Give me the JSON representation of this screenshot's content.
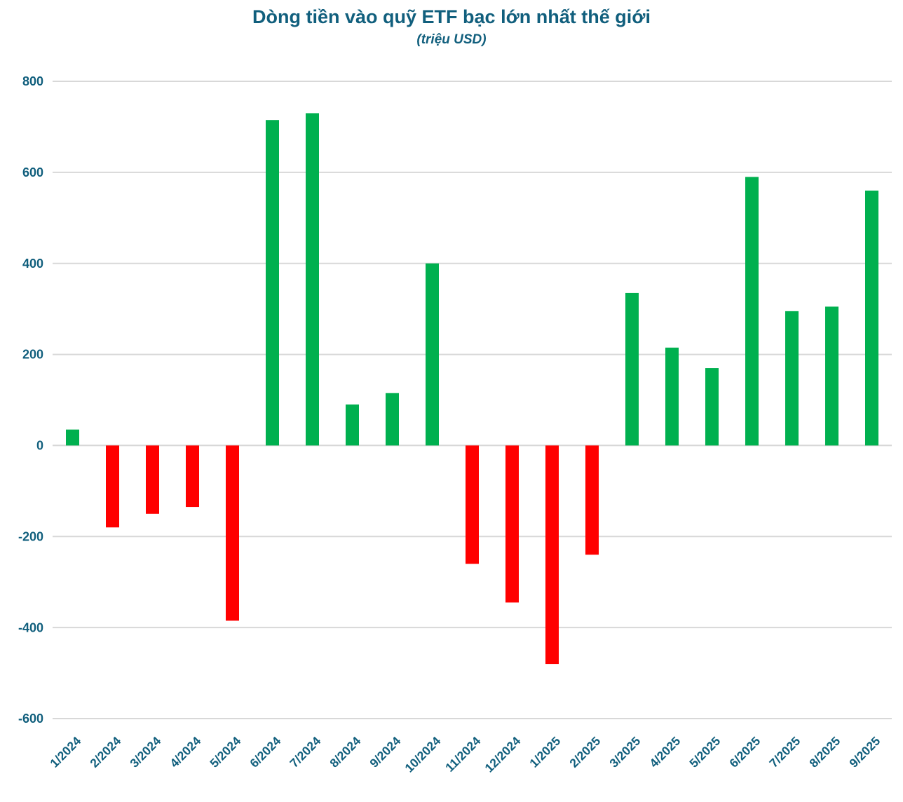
{
  "header": {
    "title": "Dòng tiền vào quỹ ETF bạc lớn nhất thế giới",
    "subtitle": "(triệu USD)"
  },
  "colors": {
    "title_text": "#115F7D",
    "axis_label_text": "#115F7D",
    "positive_bar": "#00B04F",
    "negative_bar": "#FF0000",
    "gridline": "#D8D8D8",
    "background": "#FFFFFF"
  },
  "chart_data": {
    "type": "bar",
    "title": "Dòng tiền vào quỹ ETF bạc lớn nhất thế giới",
    "subtitle": "(triệu USD)",
    "xlabel": "",
    "ylabel": "",
    "ylim": [
      -600,
      800
    ],
    "ytick_interval": 200,
    "yticks": [
      800,
      600,
      400,
      200,
      0,
      -200,
      -400,
      -600
    ],
    "grid": true,
    "legend": "none",
    "categories": [
      "1/2024",
      "2/2024",
      "3/2024",
      "4/2024",
      "5/2024",
      "6/2024",
      "7/2024",
      "8/2024",
      "9/2024",
      "10/2024",
      "11/2024",
      "12/2024",
      "1/2025",
      "2/2025",
      "3/2025",
      "4/2025",
      "5/2025",
      "6/2025",
      "7/2025",
      "8/2025",
      "9/2025"
    ],
    "values": [
      35,
      -180,
      -150,
      -135,
      -385,
      715,
      730,
      90,
      115,
      400,
      -260,
      -345,
      -480,
      -240,
      335,
      215,
      170,
      590,
      295,
      305,
      560
    ],
    "positive_color": "#00B04F",
    "negative_color": "#FF0000"
  }
}
